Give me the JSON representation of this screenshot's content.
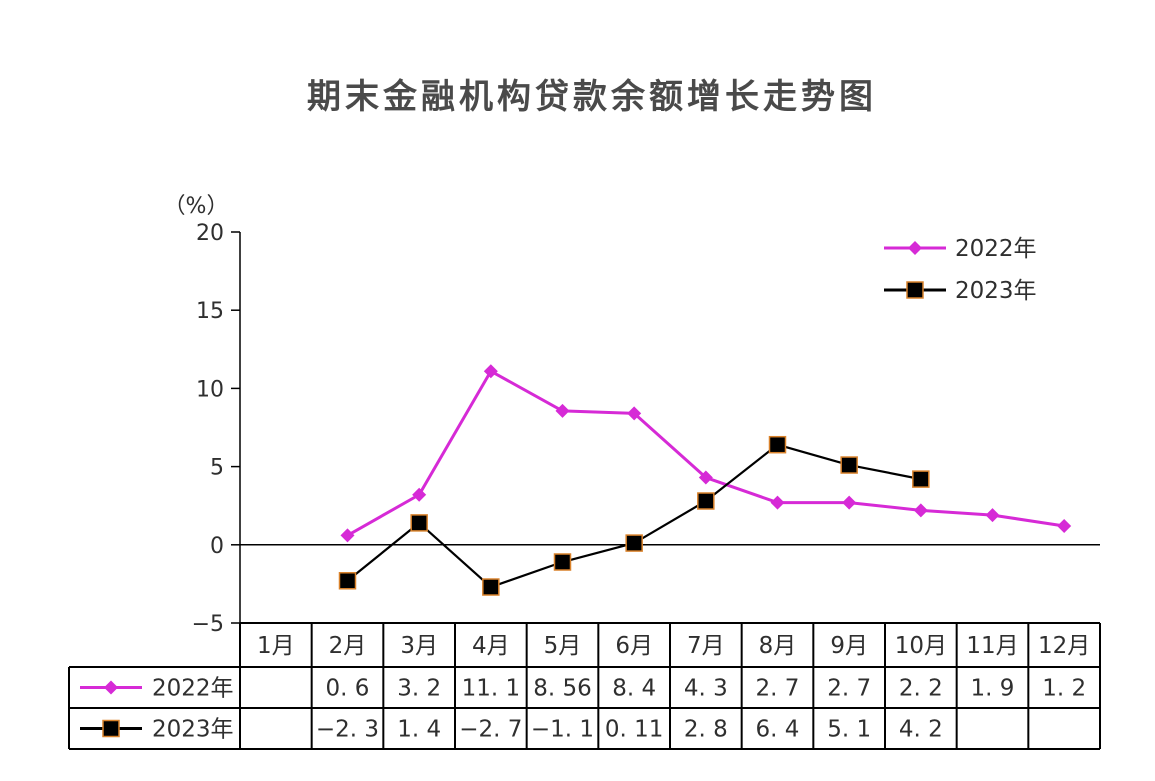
{
  "chart_data": {
    "type": "line",
    "title": "期末金融机构贷款余额增长走势图",
    "ylabel": "（%）",
    "ylim": [
      -5,
      20
    ],
    "yticks": [
      20,
      15,
      10,
      5,
      0,
      -5
    ],
    "categories": [
      "1月",
      "2月",
      "3月",
      "4月",
      "5月",
      "6月",
      "7月",
      "8月",
      "9月",
      "10月",
      "11月",
      "12月"
    ],
    "legend_position": "top-right",
    "series": [
      {
        "name": "2022年",
        "color": "#d62ad6",
        "marker": "diamond",
        "values": [
          null,
          0.6,
          3.2,
          11.1,
          8.56,
          8.4,
          4.3,
          2.7,
          2.7,
          2.2,
          1.9,
          1.2
        ],
        "labels": [
          "",
          "0. 6",
          "3. 2",
          "11. 1",
          "8. 56",
          "8. 4",
          "4. 3",
          "2. 7",
          "2. 7",
          "2. 2",
          "1. 9",
          "1. 2"
        ]
      },
      {
        "name": "2023年",
        "color": "#000000",
        "marker_edge": "#d9822b",
        "marker": "square",
        "values": [
          null,
          -2.3,
          1.4,
          -2.7,
          -1.1,
          0.11,
          2.8,
          6.4,
          5.1,
          4.2,
          null,
          null
        ],
        "labels": [
          "",
          "−2. 3",
          "1. 4",
          "−2. 7",
          "−1. 1",
          "0. 11",
          "2. 8",
          "6. 4",
          "5. 1",
          "4. 2",
          "",
          ""
        ]
      }
    ]
  }
}
